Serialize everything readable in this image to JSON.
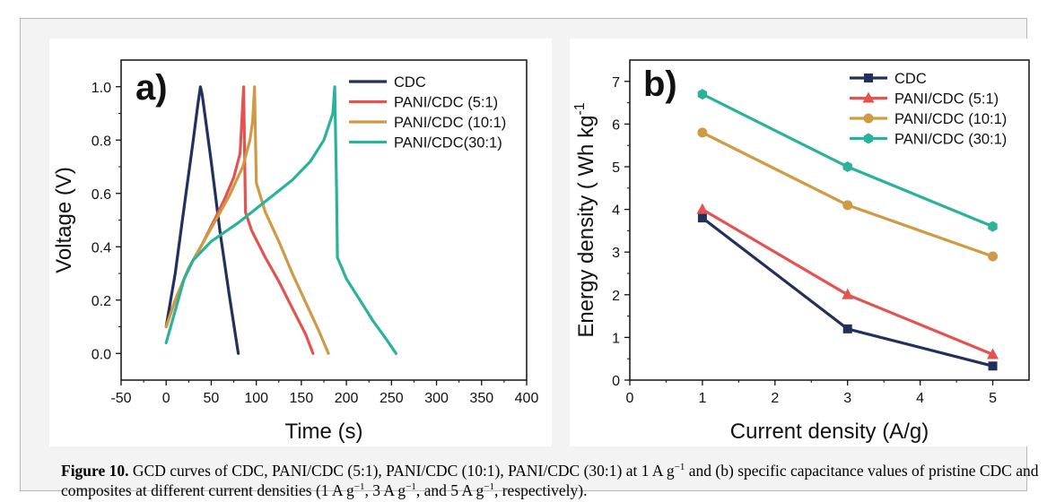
{
  "figure": {
    "caption_label": "Figure 10.",
    "caption_parts": [
      " GCD curves of CDC, PANI/CDC (5:1), PANI/CDC (10:1), PANI/CDC (30:1) at 1 A g",
      "−1",
      " and (b) specific capacitance values of pristine CDC and composites at different current densities (1 A g",
      "−1",
      ", 3 A g",
      "−1",
      ", and 5 A g",
      "−1",
      ", respectively)."
    ]
  },
  "colors": {
    "CDC": "#22305e",
    "PANI/CDC (5:1)": "#e35450",
    "PANI/CDC (10:1)": "#d09a45",
    "PANI/CDC (30:1)": "#2bb39a"
  },
  "chart_data": [
    {
      "type": "line",
      "panel_label": "a)",
      "xlabel": "Time (s)",
      "ylabel": "Voltage (V)",
      "xlim": [
        -50,
        400
      ],
      "ylim": [
        -0.1,
        1.1
      ],
      "xticks": [
        -50,
        0,
        50,
        100,
        150,
        200,
        250,
        300,
        350,
        400
      ],
      "yticks": [
        0.0,
        0.2,
        0.4,
        0.6,
        0.8,
        1.0
      ],
      "ytick_labels": [
        "0.0",
        "0.2",
        "0.4",
        "0.6",
        "0.8",
        "1.0"
      ],
      "legend_position": "top-right",
      "series": [
        {
          "name": "CDC",
          "color_key": "CDC",
          "points": [
            [
              0,
              0.1
            ],
            [
              5,
              0.2
            ],
            [
              10,
              0.3
            ],
            [
              20,
              0.55
            ],
            [
              30,
              0.8
            ],
            [
              35,
              0.93
            ],
            [
              38,
              1.0
            ],
            [
              40,
              0.97
            ],
            [
              50,
              0.72
            ],
            [
              60,
              0.45
            ],
            [
              70,
              0.22
            ],
            [
              80,
              0.0
            ]
          ]
        },
        {
          "name": "PANI/CDC (5:1)",
          "color_key": "PANI/CDC (5:1)",
          "points": [
            [
              0,
              0.1
            ],
            [
              10,
              0.2
            ],
            [
              25,
              0.32
            ],
            [
              40,
              0.41
            ],
            [
              55,
              0.51
            ],
            [
              65,
              0.58
            ],
            [
              75,
              0.66
            ],
            [
              82,
              0.75
            ],
            [
              86,
              1.0
            ],
            [
              88,
              0.53
            ],
            [
              95,
              0.46
            ],
            [
              110,
              0.36
            ],
            [
              125,
              0.27
            ],
            [
              140,
              0.17
            ],
            [
              155,
              0.07
            ],
            [
              163,
              0.0
            ]
          ]
        },
        {
          "name": "PANI/CDC (10:1)",
          "color_key": "PANI/CDC (10:1)",
          "points": [
            [
              0,
              0.1
            ],
            [
              10,
              0.2
            ],
            [
              25,
              0.32
            ],
            [
              40,
              0.41
            ],
            [
              55,
              0.5
            ],
            [
              70,
              0.59
            ],
            [
              85,
              0.7
            ],
            [
              93,
              0.8
            ],
            [
              96,
              0.87
            ],
            [
              98,
              1.0
            ],
            [
              100,
              0.64
            ],
            [
              110,
              0.53
            ],
            [
              125,
              0.42
            ],
            [
              140,
              0.3
            ],
            [
              155,
              0.19
            ],
            [
              170,
              0.08
            ],
            [
              180,
              0.0
            ]
          ]
        },
        {
          "name": "PANI/CDC(30:1)",
          "color_key": "PANI/CDC (30:1)",
          "points": [
            [
              0,
              0.04
            ],
            [
              10,
              0.16
            ],
            [
              20,
              0.28
            ],
            [
              30,
              0.35
            ],
            [
              50,
              0.42
            ],
            [
              80,
              0.49
            ],
            [
              110,
              0.57
            ],
            [
              140,
              0.65
            ],
            [
              160,
              0.72
            ],
            [
              175,
              0.8
            ],
            [
              185,
              0.9
            ],
            [
              187,
              1.0
            ],
            [
              189,
              0.62
            ],
            [
              190,
              0.36
            ],
            [
              200,
              0.28
            ],
            [
              215,
              0.2
            ],
            [
              230,
              0.12
            ],
            [
              245,
              0.05
            ],
            [
              255,
              0.0
            ]
          ]
        }
      ]
    },
    {
      "type": "line",
      "panel_label": "b)",
      "xlabel": "Current density (A/g)",
      "ylabel_main": "Energy density ( Wh kg",
      "ylabel_sup": "-1",
      "xlim": [
        0,
        5.5
      ],
      "ylim": [
        0,
        7.5
      ],
      "xticks": [
        0,
        1,
        2,
        3,
        4,
        5
      ],
      "yticks": [
        0,
        1,
        2,
        3,
        4,
        5,
        6,
        7
      ],
      "legend_position": "top-right",
      "x": [
        1,
        3,
        5
      ],
      "series": [
        {
          "name": "CDC",
          "color_key": "CDC",
          "marker": "square",
          "values": [
            3.8,
            1.2,
            0.33
          ]
        },
        {
          "name": "PANI/CDC (5:1)",
          "color_key": "PANI/CDC (5:1)",
          "marker": "triangle",
          "values": [
            4.0,
            2.0,
            0.6
          ]
        },
        {
          "name": "PANI/CDC (10:1)",
          "color_key": "PANI/CDC (10:1)",
          "marker": "circle",
          "values": [
            5.8,
            4.1,
            2.9
          ]
        },
        {
          "name": "PANI/CDC (30:1)",
          "color_key": "PANI/CDC (30:1)",
          "marker": "hexagon",
          "values": [
            6.7,
            5.0,
            3.6
          ]
        }
      ]
    }
  ]
}
